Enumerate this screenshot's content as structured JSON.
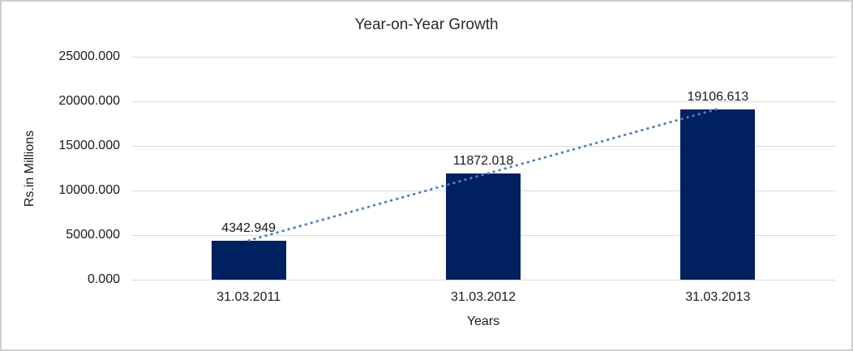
{
  "chart_data": {
    "type": "bar",
    "title": "Year-on-Year Growth",
    "xlabel": "Years",
    "ylabel": "Rs.in Millions",
    "categories": [
      "31.03.2011",
      "31.03.2012",
      "31.03.2013"
    ],
    "values": [
      4342.949,
      11872.018,
      19106.613
    ],
    "data_labels": [
      "4342.949",
      "11872.018",
      "19106.613"
    ],
    "ylim": [
      0,
      25000
    ],
    "ytick_step": 5000,
    "ytick_labels": [
      "0.000",
      "5000.000",
      "10000.000",
      "15000.000",
      "20000.000",
      "25000.000"
    ],
    "grid": true,
    "legend": "none",
    "trendline": {
      "type": "linear",
      "style": "dotted",
      "color": "#4e81bd"
    },
    "colors": {
      "bar": "#002060",
      "gridline": "#d9d9d9",
      "text": "#1a1a1a",
      "background": "#ffffff",
      "border": "#d0cdcd"
    }
  }
}
